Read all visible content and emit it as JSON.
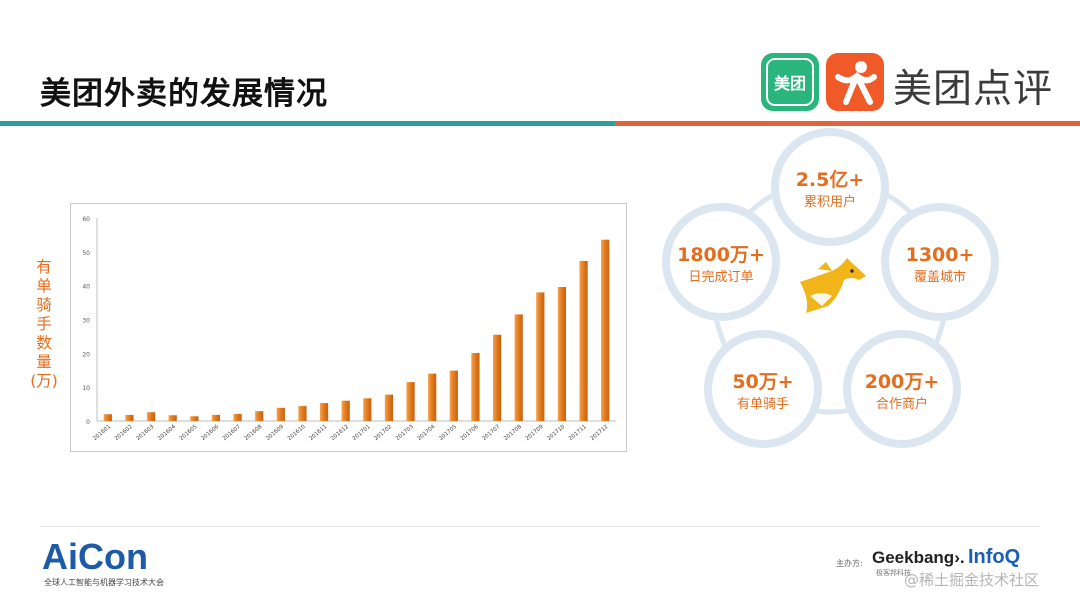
{
  "slide": {
    "title": "美团外卖的发展情况"
  },
  "brand": {
    "meituan_icon_text": "美团",
    "dianping_icon": "dianping-person-icon",
    "name": "美团点评"
  },
  "chart_data": {
    "type": "bar",
    "title": "",
    "xlabel": "",
    "ylabel": "有单骑手数量(万)",
    "ylim": [
      0,
      60
    ],
    "yticks": [
      0,
      10,
      20,
      30,
      40,
      50,
      60
    ],
    "grid": false,
    "bar_color": "#e88a2e",
    "categories": [
      "201601",
      "201602",
      "201603",
      "201604",
      "201605",
      "201606",
      "201607",
      "201608",
      "201609",
      "201610",
      "201611",
      "201612",
      "201701",
      "201702",
      "201703",
      "201704",
      "201705",
      "201706",
      "201707",
      "201708",
      "201709",
      "201710",
      "201711",
      "201712"
    ],
    "values": [
      2.0,
      1.8,
      2.6,
      1.7,
      1.4,
      1.8,
      2.1,
      2.9,
      3.9,
      4.4,
      5.3,
      6.0,
      6.7,
      7.8,
      11.5,
      14.0,
      14.9,
      20.1,
      25.5,
      31.5,
      38.0,
      39.6,
      47.3,
      53.6
    ]
  },
  "stats": {
    "items": [
      {
        "number": "2.5亿+",
        "label": "累积用户"
      },
      {
        "number": "1300+",
        "label": "覆盖城市"
      },
      {
        "number": "200万+",
        "label": "合作商户"
      },
      {
        "number": "50万+",
        "label": "有单骑手"
      },
      {
        "number": "1800万+",
        "label": "日完成订单"
      }
    ],
    "center_icon": "kangaroo-icon",
    "accent_color": "#e46d1e",
    "ring_color": "#dce6f1"
  },
  "footer": {
    "conference_logo": "AiCon",
    "conference_sub": "全球人工智能与机器学习技术大会",
    "host_label": "主办方:",
    "geekbang": "Geekbang›.",
    "geekbang_sub": "极客邦科技",
    "infoq": "InfoQ",
    "watermark": "@稀土掘金技术社区"
  }
}
